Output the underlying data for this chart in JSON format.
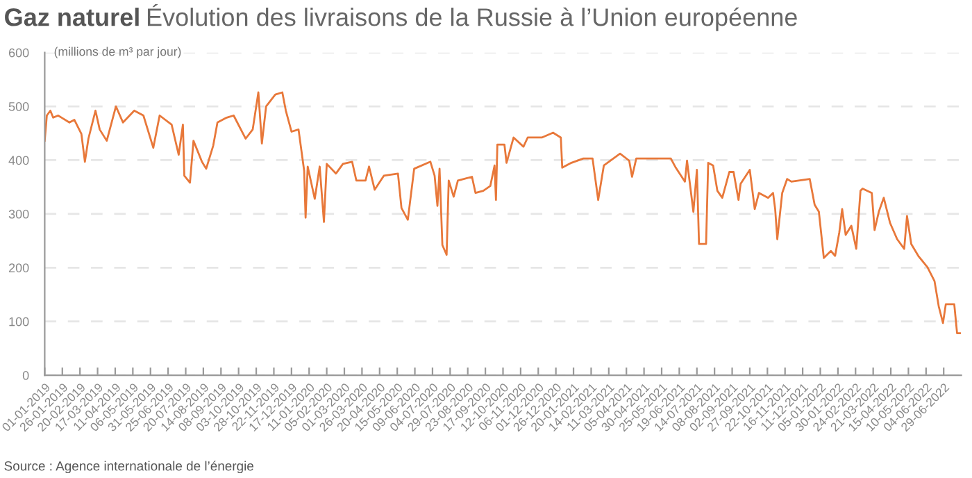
{
  "chart_data": {
    "type": "line",
    "title": "Gaz naturel",
    "subtitle": "Évolution des livraisons de la Russie à l’Union européenne",
    "ylabel": "(millions de m³ par jour)",
    "annotations": [
      "Source : Agence internationale de l’énergie"
    ],
    "x": [
      "2019-01-01",
      "2019-01-04",
      "2019-01-09",
      "2019-01-13",
      "2019-01-20",
      "2019-01-25",
      "2019-02-05",
      "2019-02-12",
      "2019-02-22",
      "2019-02-27",
      "2019-03-04",
      "2019-03-14",
      "2019-03-20",
      "2019-03-30",
      "2019-04-12",
      "2019-04-22",
      "2019-05-08",
      "2019-05-21",
      "2019-06-04",
      "2019-06-13",
      "2019-06-30",
      "2019-07-10",
      "2019-07-16",
      "2019-07-18",
      "2019-07-26",
      "2019-07-31",
      "2019-08-12",
      "2019-08-18",
      "2019-08-28",
      "2019-09-03",
      "2019-09-16",
      "2019-09-26",
      "2019-10-13",
      "2019-10-23",
      "2019-10-31",
      "2019-11-05",
      "2019-11-11",
      "2019-11-24",
      "2019-12-04",
      "2019-12-09",
      "2019-12-17",
      "2019-12-27",
      "2020-01-04",
      "2020-01-06",
      "2020-01-09",
      "2020-01-19",
      "2020-01-26",
      "2020-02-01",
      "2020-02-05",
      "2020-02-18",
      "2020-02-28",
      "2020-03-12",
      "2020-03-18",
      "2020-03-31",
      "2020-04-05",
      "2020-04-13",
      "2020-04-26",
      "2020-05-16",
      "2020-05-21",
      "2020-05-30",
      "2020-06-08",
      "2020-07-01",
      "2020-07-07",
      "2020-07-11",
      "2020-07-14",
      "2020-07-18",
      "2020-07-24",
      "2020-07-27",
      "2020-08-03",
      "2020-08-09",
      "2020-08-29",
      "2020-09-03",
      "2020-09-14",
      "2020-09-24",
      "2020-09-30",
      "2020-10-02",
      "2020-10-04",
      "2020-10-14",
      "2020-10-17",
      "2020-10-27",
      "2020-11-10",
      "2020-11-16",
      "2020-12-06",
      "2020-12-22",
      "2021-01-02",
      "2021-01-04",
      "2021-01-17",
      "2021-02-03",
      "2021-02-16",
      "2021-02-24",
      "2021-03-04",
      "2021-03-27",
      "2021-04-09",
      "2021-04-13",
      "2021-04-19",
      "2021-05-19",
      "2021-06-07",
      "2021-06-14",
      "2021-06-27",
      "2021-06-30",
      "2021-07-09",
      "2021-07-14",
      "2021-07-17",
      "2021-07-27",
      "2021-07-30",
      "2021-08-06",
      "2021-08-12",
      "2021-08-19",
      "2021-08-29",
      "2021-09-04",
      "2021-09-11",
      "2021-09-14",
      "2021-09-27",
      "2021-10-04",
      "2021-10-10",
      "2021-10-23",
      "2021-10-30",
      "2021-11-02",
      "2021-11-05",
      "2021-11-12",
      "2021-11-19",
      "2021-11-25",
      "2021-12-21",
      "2021-12-28",
      "2022-01-03",
      "2022-01-10",
      "2022-01-20",
      "2022-01-26",
      "2022-02-01",
      "2022-02-05",
      "2022-02-10",
      "2022-02-18",
      "2022-02-25",
      "2022-03-03",
      "2022-03-06",
      "2022-03-19",
      "2022-03-23",
      "2022-03-29",
      "2022-04-05",
      "2022-04-14",
      "2022-04-24",
      "2022-05-04",
      "2022-05-08",
      "2022-05-14",
      "2022-05-24",
      "2022-06-06",
      "2022-06-16",
      "2022-06-22",
      "2022-06-28",
      "2022-07-02",
      "2022-07-14",
      "2022-07-18",
      "2022-07-22"
    ],
    "series": [
      {
        "color": "#e8783a",
        "values": [
          436,
          483,
          492,
          479,
          483,
          479,
          470,
          475,
          449,
          397,
          440,
          492,
          457,
          436,
          500,
          470,
          492,
          483,
          423,
          483,
          466,
          410,
          466,
          371,
          358,
          436,
          397,
          384,
          427,
          470,
          479,
          483,
          440,
          457,
          526,
          431,
          500,
          522,
          526,
          492,
          453,
          457,
          380,
          293,
          388,
          328,
          388,
          285,
          393,
          375,
          393,
          397,
          362,
          362,
          388,
          345,
          371,
          375,
          311,
          289,
          384,
          397,
          371,
          315,
          384,
          242,
          224,
          362,
          332,
          362,
          369,
          339,
          343,
          352,
          390,
          326,
          429,
          429,
          395,
          442,
          425,
          442,
          442,
          451,
          442,
          386,
          395,
          403,
          403,
          326,
          390,
          412,
          399,
          369,
          403,
          403,
          403,
          386,
          360,
          399,
          304,
          382,
          244,
          244,
          395,
          390,
          343,
          330,
          378,
          378,
          326,
          356,
          382,
          309,
          339,
          330,
          339,
          309,
          253,
          339,
          365,
          360,
          365,
          317,
          304,
          218,
          231,
          222,
          266,
          309,
          261,
          278,
          235,
          343,
          347,
          339,
          270,
          304,
          330,
          283,
          253,
          235,
          296,
          244,
          222,
          201,
          175,
          128,
          97,
          132,
          132,
          78,
          78
        ]
      }
    ],
    "xlim": [
      "2019-01-01",
      "2022-07-24"
    ],
    "xticks": [
      {
        "value": "2019-01-01",
        "label": "01-01-2019"
      },
      {
        "value": "2019-01-26",
        "label": "26-01-2019"
      },
      {
        "value": "2019-02-20",
        "label": "20-02-2019"
      },
      {
        "value": "2019-03-17",
        "label": "17-03-2019"
      },
      {
        "value": "2019-04-11",
        "label": "11-04-2019"
      },
      {
        "value": "2019-05-06",
        "label": "06-05-2019"
      },
      {
        "value": "2019-05-31",
        "label": "31-05-2019"
      },
      {
        "value": "2019-06-25",
        "label": "25-06-2019"
      },
      {
        "value": "2019-07-20",
        "label": "20-07-2019"
      },
      {
        "value": "2019-08-14",
        "label": "14-08-2019"
      },
      {
        "value": "2019-09-08",
        "label": "08-09-2019"
      },
      {
        "value": "2019-10-03",
        "label": "03-10-2019"
      },
      {
        "value": "2019-10-28",
        "label": "28-10-2019"
      },
      {
        "value": "2019-11-22",
        "label": "22-11-2019"
      },
      {
        "value": "2019-12-17",
        "label": "17-12-2019"
      },
      {
        "value": "2020-01-11",
        "label": "11-01-2020"
      },
      {
        "value": "2020-02-05",
        "label": "05-02-2020"
      },
      {
        "value": "2020-03-01",
        "label": "01-03-2020"
      },
      {
        "value": "2020-03-26",
        "label": "26-03-2020"
      },
      {
        "value": "2020-04-20",
        "label": "20-04-2020"
      },
      {
        "value": "2020-05-15",
        "label": "15-05-2020"
      },
      {
        "value": "2020-06-09",
        "label": "09-06-2020"
      },
      {
        "value": "2020-07-04",
        "label": "04-07-2020"
      },
      {
        "value": "2020-07-29",
        "label": "29-07-2020"
      },
      {
        "value": "2020-08-23",
        "label": "23-08-2020"
      },
      {
        "value": "2020-09-17",
        "label": "17-09-2020"
      },
      {
        "value": "2020-10-12",
        "label": "12-10-2020"
      },
      {
        "value": "2020-11-06",
        "label": "06-11-2020"
      },
      {
        "value": "2020-12-01",
        "label": "01-12-2020"
      },
      {
        "value": "2020-12-26",
        "label": "26-12-2020"
      },
      {
        "value": "2021-01-20",
        "label": "20-01-2021"
      },
      {
        "value": "2021-02-14",
        "label": "14-02-2021"
      },
      {
        "value": "2021-03-11",
        "label": "11-03-2021"
      },
      {
        "value": "2021-04-05",
        "label": "05-04-2021"
      },
      {
        "value": "2021-04-30",
        "label": "30-04-2021"
      },
      {
        "value": "2021-05-25",
        "label": "25-05-2021"
      },
      {
        "value": "2021-06-19",
        "label": "19-06-2021"
      },
      {
        "value": "2021-07-14",
        "label": "14-07-2021"
      },
      {
        "value": "2021-08-08",
        "label": "08-08-2021"
      },
      {
        "value": "2021-09-02",
        "label": "02-09-2021"
      },
      {
        "value": "2021-09-27",
        "label": "27-09-2021"
      },
      {
        "value": "2021-10-22",
        "label": "22-10-2021"
      },
      {
        "value": "2021-11-16",
        "label": "16-11-2021"
      },
      {
        "value": "2021-12-11",
        "label": "11-12-2021"
      },
      {
        "value": "2022-01-05",
        "label": "05-01-2022"
      },
      {
        "value": "2022-01-30",
        "label": "30-01-2022"
      },
      {
        "value": "2022-02-24",
        "label": "24-02-2022"
      },
      {
        "value": "2022-03-21",
        "label": "21-03-2022"
      },
      {
        "value": "2022-04-15",
        "label": "15-04-2022"
      },
      {
        "value": "2022-05-10",
        "label": "10-05-2022"
      },
      {
        "value": "2022-06-04",
        "label": "04-06-2022"
      },
      {
        "value": "2022-06-29",
        "label": "29-06-2022"
      }
    ],
    "ylim": [
      0,
      600
    ],
    "yticks": [
      0,
      100,
      200,
      300,
      400,
      500,
      600
    ],
    "grid": "y",
    "line_style": "solid",
    "legend": false
  }
}
